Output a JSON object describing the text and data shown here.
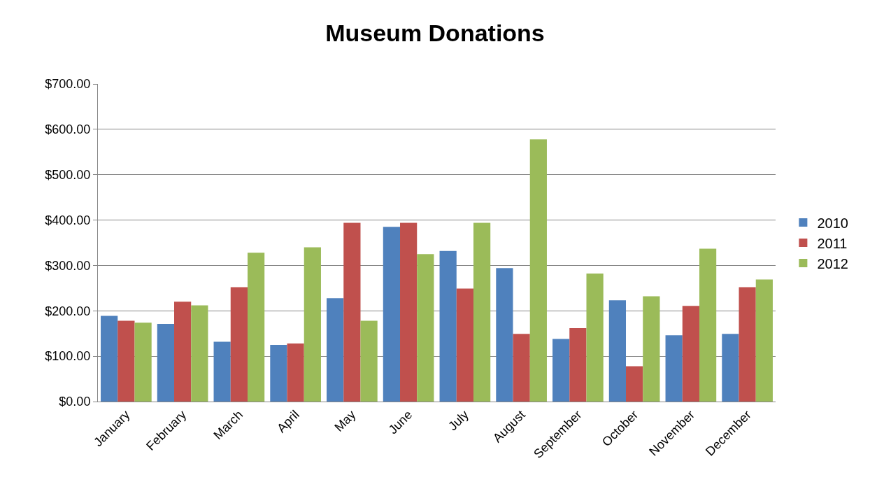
{
  "chart_data": {
    "type": "bar",
    "title": "Museum Donations",
    "categories": [
      "January",
      "February",
      "March",
      "April",
      "May",
      "June",
      "July",
      "August",
      "September",
      "October",
      "November",
      "December"
    ],
    "series": [
      {
        "name": "2010",
        "color": "#4f81bd",
        "values": [
          189,
          171,
          132,
          125,
          228,
          385,
          332,
          294,
          138,
          223,
          146,
          149
        ]
      },
      {
        "name": "2011",
        "color": "#c0504d",
        "values": [
          178,
          220,
          252,
          128,
          394,
          394,
          249,
          149,
          162,
          78,
          211,
          252
        ]
      },
      {
        "name": "2012",
        "color": "#9bbb59",
        "values": [
          174,
          212,
          328,
          340,
          178,
          325,
          394,
          578,
          282,
          232,
          337,
          269
        ]
      }
    ],
    "ylim": [
      0,
      700
    ],
    "yticks": [
      {
        "value": 0,
        "label": "$0.00"
      },
      {
        "value": 100,
        "label": "$100.00"
      },
      {
        "value": 200,
        "label": "$200.00"
      },
      {
        "value": 300,
        "label": "$300.00"
      },
      {
        "value": 400,
        "label": "$400.00"
      },
      {
        "value": 500,
        "label": "$500.00"
      },
      {
        "value": 600,
        "label": "$600.00"
      },
      {
        "value": 700,
        "label": "$700.00"
      }
    ],
    "grid": "y",
    "legend": "right"
  }
}
